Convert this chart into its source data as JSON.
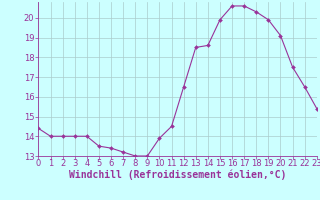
{
  "x": [
    0,
    1,
    2,
    3,
    4,
    5,
    6,
    7,
    8,
    9,
    10,
    11,
    12,
    13,
    14,
    15,
    16,
    17,
    18,
    19,
    20,
    21,
    22,
    23
  ],
  "y": [
    14.4,
    14.0,
    14.0,
    14.0,
    14.0,
    13.5,
    13.4,
    13.2,
    13.0,
    13.0,
    13.9,
    14.5,
    16.5,
    18.5,
    18.6,
    19.9,
    20.6,
    20.6,
    20.3,
    19.9,
    19.1,
    17.5,
    16.5,
    15.4
  ],
  "line_color": "#993399",
  "marker": "D",
  "marker_size": 2.0,
  "bg_color": "#ccffff",
  "grid_color": "#aacccc",
  "xlabel": "Windchill (Refroidissement éolien,°C)",
  "xlabel_fontsize": 7.0,
  "tick_fontsize": 6.0,
  "ylim": [
    13,
    20.8
  ],
  "xlim": [
    0,
    23
  ],
  "yticks": [
    13,
    14,
    15,
    16,
    17,
    18,
    19,
    20
  ],
  "xticks": [
    0,
    1,
    2,
    3,
    4,
    5,
    6,
    7,
    8,
    9,
    10,
    11,
    12,
    13,
    14,
    15,
    16,
    17,
    18,
    19,
    20,
    21,
    22,
    23
  ],
  "xtick_labels": [
    "0",
    "1",
    "2",
    "3",
    "4",
    "5",
    "6",
    "7",
    "8",
    "9",
    "10",
    "11",
    "12",
    "13",
    "14",
    "15",
    "16",
    "17",
    "18",
    "19",
    "20",
    "21",
    "22",
    "23"
  ]
}
